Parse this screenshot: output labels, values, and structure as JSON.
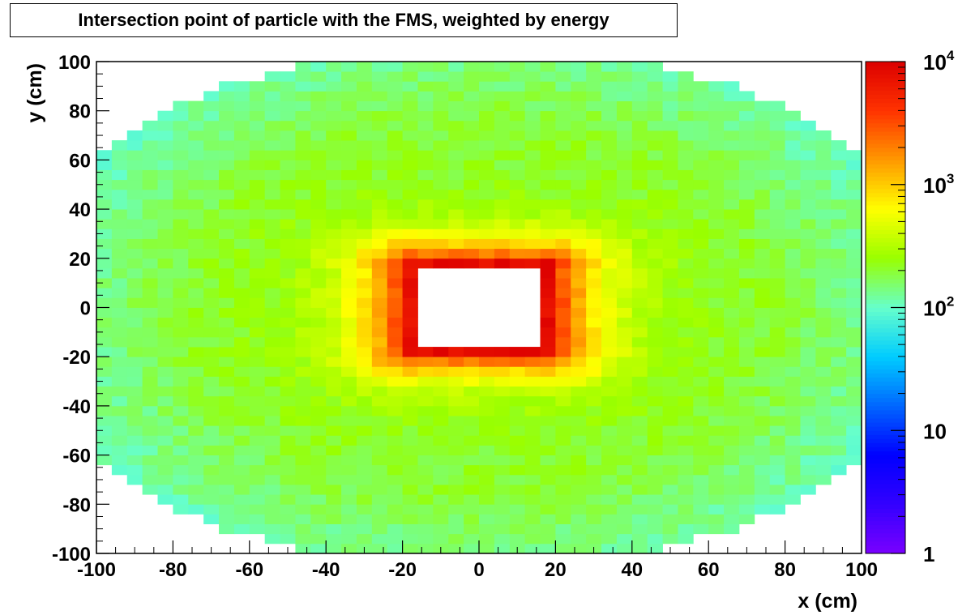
{
  "chart_data": {
    "type": "heatmap",
    "title": "Intersection point of particle with the FMS, weighted by energy",
    "xlabel": "x (cm)",
    "ylabel": "y (cm)",
    "xlim": [
      -100,
      100
    ],
    "ylim": [
      -100,
      100
    ],
    "x_ticks": [
      "-100",
      "-80",
      "-60",
      "-40",
      "-20",
      "0",
      "20",
      "40",
      "60",
      "80",
      "100"
    ],
    "y_ticks": [
      "100",
      "80",
      "60",
      "40",
      "20",
      "0",
      "-20",
      "-40",
      "-60",
      "-80",
      "-100"
    ],
    "z_scale": "log",
    "zlim": [
      1,
      10000
    ],
    "z_ticks": [
      {
        "value": 1,
        "base": "1",
        "exp": ""
      },
      {
        "value": 10,
        "base": "10",
        "exp": ""
      },
      {
        "value": 100,
        "base": "10",
        "exp": "2"
      },
      {
        "value": 1000,
        "base": "10",
        "exp": "3"
      },
      {
        "value": 10000,
        "base": "10",
        "exp": "4"
      }
    ],
    "bin_width_cm": 4,
    "acceptance": {
      "outer_ellipse_half_x": 100,
      "outer_ellipse_half_y": 100,
      "shape": "octagon-like ellipse clipped at |x|<=100, |y|<=100"
    },
    "hole": {
      "x": [
        -18,
        18
      ],
      "y": [
        -18,
        18
      ]
    },
    "peak_value": 8000,
    "edge_value": 200,
    "grid": false,
    "colors": {
      "palette": [
        "#7a00ff",
        "#3300ff",
        "#0000ff",
        "#0066ff",
        "#00ccff",
        "#66ffcc",
        "#99ff00",
        "#ffff00",
        "#ff9900",
        "#ff3300",
        "#dd0000"
      ],
      "frame": "#000000"
    }
  }
}
